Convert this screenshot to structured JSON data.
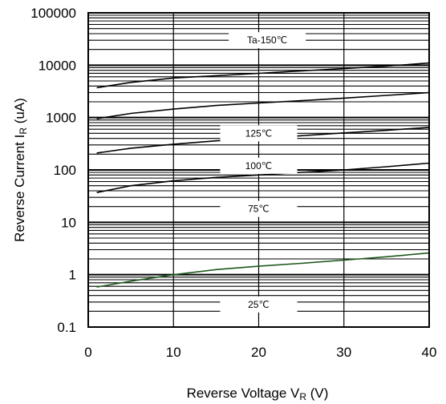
{
  "chart_data": {
    "type": "line",
    "title": "",
    "xlabel": {
      "main": "Reverse Voltage  V",
      "sub": "R",
      "unit": " (V)"
    },
    "ylabel": {
      "main": "Reverse Current  I",
      "sub": "R",
      "unit": " (uA)"
    },
    "xlim": [
      0,
      40
    ],
    "ylim": [
      0.1,
      100000
    ],
    "yscale": "log",
    "grid": true,
    "x_ticks": [
      "0",
      "10",
      "20",
      "30",
      "40"
    ],
    "y_ticks": [
      "0.1",
      "1",
      "10",
      "100",
      "1000",
      "10000",
      "100000"
    ],
    "series": [
      {
        "name": "Ta-150℃",
        "color": "#000000",
        "x": [
          1,
          5,
          10,
          15,
          20,
          25,
          30,
          35,
          40
        ],
        "y": [
          3700,
          4700,
          5700,
          6300,
          7000,
          7800,
          8600,
          9600,
          11000
        ]
      },
      {
        "name": "125℃",
        "color": "#000000",
        "x": [
          1,
          5,
          10,
          15,
          20,
          25,
          30,
          35,
          40
        ],
        "y": [
          950,
          1200,
          1450,
          1700,
          1900,
          2100,
          2350,
          2650,
          3000
        ]
      },
      {
        "name": "100℃",
        "color": "#000000",
        "x": [
          1,
          5,
          10,
          15,
          20,
          25,
          30,
          35,
          40
        ],
        "y": [
          210,
          260,
          310,
          360,
          400,
          450,
          510,
          570,
          650
        ]
      },
      {
        "name": "75℃",
        "color": "#000000",
        "x": [
          1,
          5,
          10,
          15,
          20,
          25,
          30,
          35,
          40
        ],
        "y": [
          37,
          50,
          62,
          72,
          80,
          90,
          100,
          115,
          135
        ]
      },
      {
        "name": "25℃",
        "color": "#1e5a1e",
        "x": [
          1,
          5,
          10,
          15,
          20,
          25,
          30,
          35,
          40
        ],
        "y": [
          0.58,
          0.75,
          1.0,
          1.25,
          1.45,
          1.65,
          1.9,
          2.2,
          2.6
        ]
      }
    ]
  }
}
